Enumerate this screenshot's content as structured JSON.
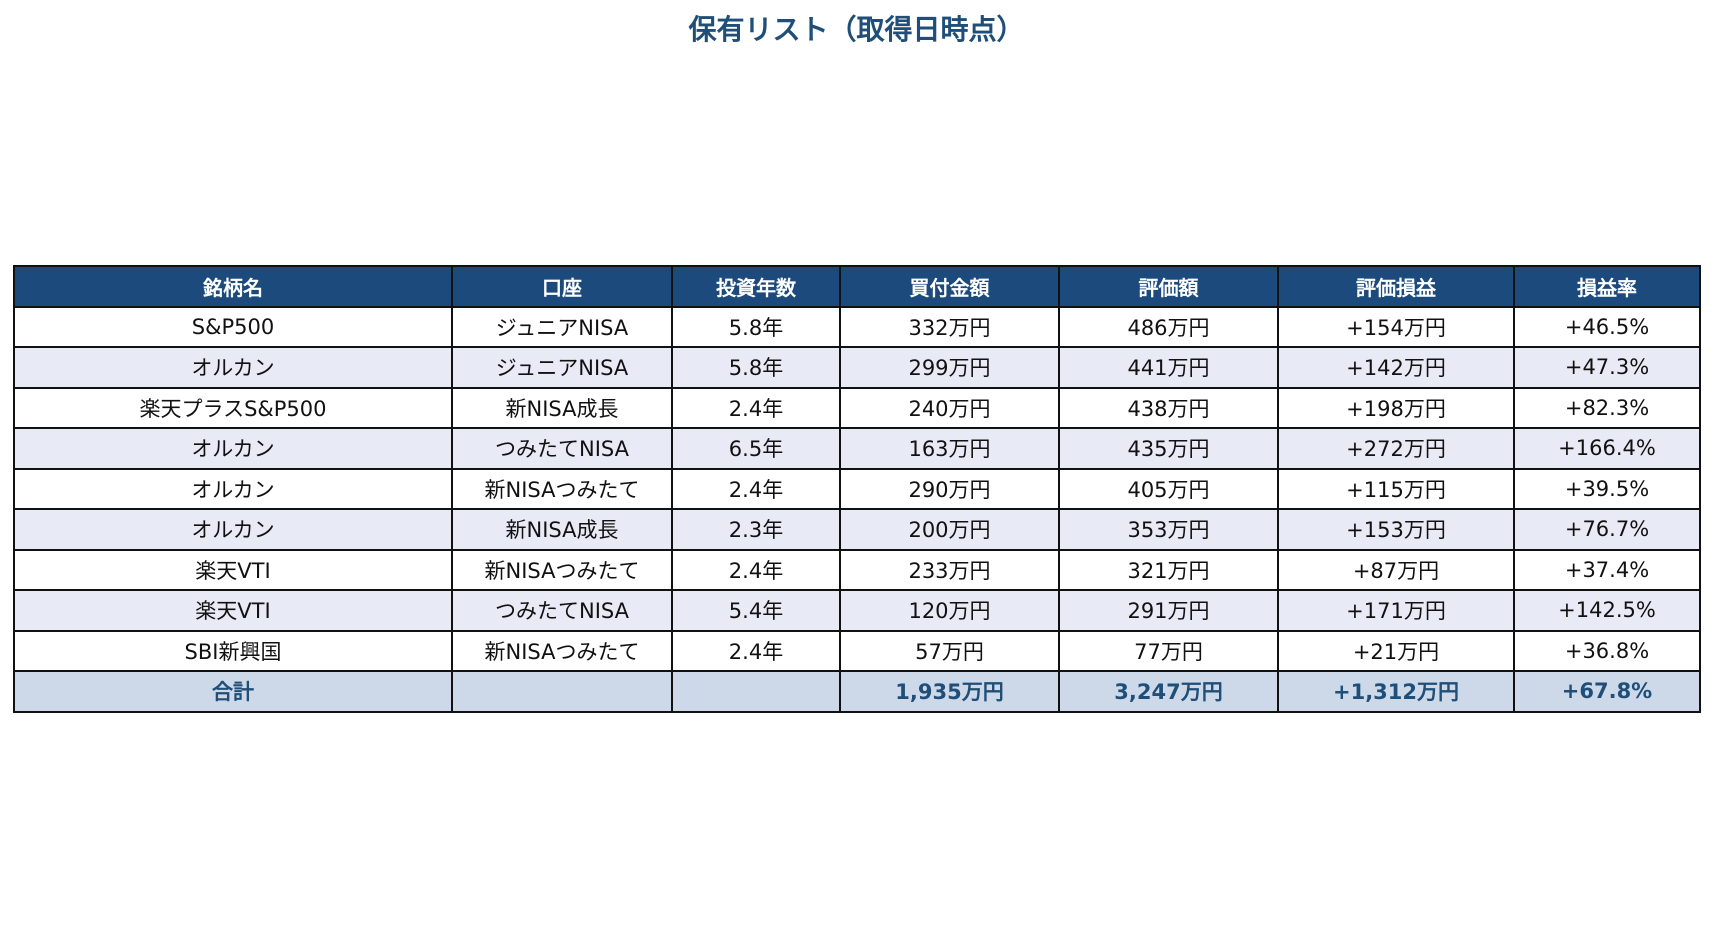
{
  "title": "保有リスト（取得日時点）",
  "table": {
    "header": [
      "銘柄名",
      "口座",
      "投資年数",
      "買付金額",
      "評価額",
      "評価損益",
      "損益率"
    ],
    "rows": [
      [
        "S&P500",
        "ジュニアNISA",
        "5.8年",
        "332万円",
        "486万円",
        "+154万円",
        "+46.5%"
      ],
      [
        "オルカン",
        "ジュニアNISA",
        "5.8年",
        "299万円",
        "441万円",
        "+142万円",
        "+47.3%"
      ],
      [
        "楽天プラスS&P500",
        "新NISA成長",
        "2.4年",
        "240万円",
        "438万円",
        "+198万円",
        "+82.3%"
      ],
      [
        "オルカン",
        "つみたてNISA",
        "6.5年",
        "163万円",
        "435万円",
        "+272万円",
        "+166.4%"
      ],
      [
        "オルカン",
        "新NISAつみたて",
        "2.4年",
        "290万円",
        "405万円",
        "+115万円",
        "+39.5%"
      ],
      [
        "オルカン",
        "新NISA成長",
        "2.3年",
        "200万円",
        "353万円",
        "+153万円",
        "+76.7%"
      ],
      [
        "楽天VTI",
        "新NISAつみたて",
        "2.4年",
        "233万円",
        "321万円",
        "+87万円",
        "+37.4%"
      ],
      [
        "楽天VTI",
        "つみたてNISA",
        "5.4年",
        "120万円",
        "291万円",
        "+171万円",
        "+142.5%"
      ],
      [
        "SBI新興国",
        "新NISAつみたて",
        "2.4年",
        "57万円",
        "77万円",
        "+21万円",
        "+36.8%"
      ]
    ],
    "total": {
      "label": "合計",
      "values": [
        "1,935万円",
        "3,247万円",
        "+1,312万円",
        "+67.8%"
      ]
    }
  }
}
